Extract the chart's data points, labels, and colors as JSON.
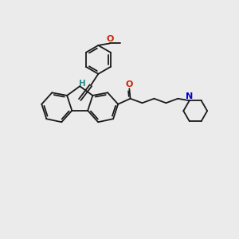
{
  "bg_color": "#ebebeb",
  "bond_color": "#1a1a1a",
  "bond_lw": 1.3,
  "H_color": "#2e8b8b",
  "O_color": "#cc2200",
  "N_color": "#0000cc",
  "figsize": [
    3.0,
    3.0
  ],
  "dpi": 100,
  "xlim": [
    0,
    12
  ],
  "ylim": [
    0,
    12
  ]
}
